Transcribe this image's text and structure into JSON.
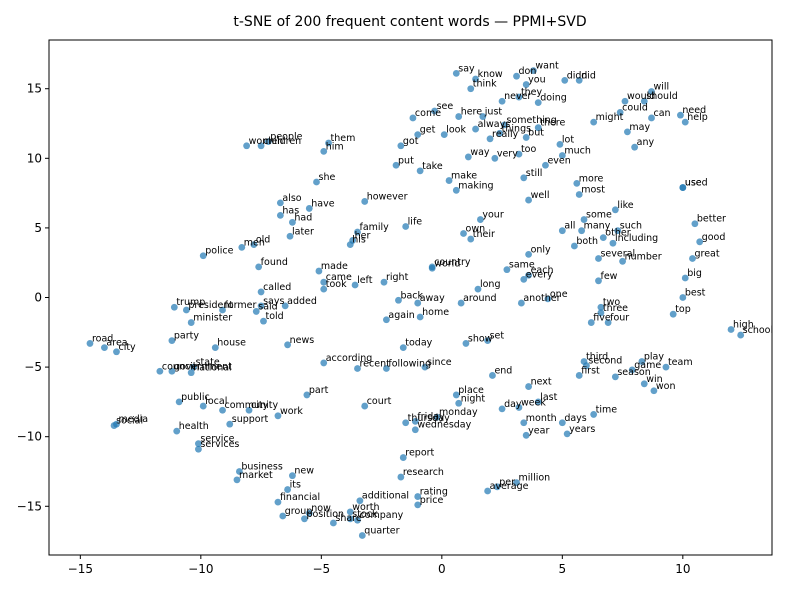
{
  "chart_data": {
    "type": "scatter",
    "title": "t-SNE of 200 frequent content words — PPMI+SVD",
    "xlabel": "",
    "ylabel": "",
    "xlim": [
      -16.3,
      13.7
    ],
    "ylim": [
      -18.5,
      18.5
    ],
    "xticks": [
      -15,
      -10,
      -5,
      0,
      5,
      10
    ],
    "yticks": [
      -15,
      -10,
      -5,
      0,
      5,
      10,
      15
    ],
    "grid": false,
    "point_color": "#1f77b4",
    "points": [
      {
        "label": "say",
        "x": 0.6,
        "y": 16.1
      },
      {
        "label": "know",
        "x": 1.4,
        "y": 15.7
      },
      {
        "label": "think",
        "x": 1.2,
        "y": 15.0
      },
      {
        "label": "don",
        "x": 3.1,
        "y": 15.9
      },
      {
        "label": "want",
        "x": 3.8,
        "y": 16.3
      },
      {
        "label": "you",
        "x": 3.5,
        "y": 15.3
      },
      {
        "label": "didn",
        "x": 5.1,
        "y": 15.6
      },
      {
        "label": "did",
        "x": 5.7,
        "y": 15.6
      },
      {
        "label": "they",
        "x": 3.2,
        "y": 14.4
      },
      {
        "label": "never",
        "x": 2.5,
        "y": 14.1
      },
      {
        "label": "doing",
        "x": 4.0,
        "y": 14.0
      },
      {
        "label": "will",
        "x": 8.7,
        "y": 14.8
      },
      {
        "label": "would",
        "x": 7.6,
        "y": 14.1
      },
      {
        "label": "should",
        "x": 8.4,
        "y": 14.1
      },
      {
        "label": "could",
        "x": 7.4,
        "y": 13.3
      },
      {
        "label": "need",
        "x": 9.9,
        "y": 13.1
      },
      {
        "label": "can",
        "x": 8.7,
        "y": 12.9
      },
      {
        "label": "help",
        "x": 10.1,
        "y": 12.6
      },
      {
        "label": "might",
        "x": 6.3,
        "y": 12.6
      },
      {
        "label": "may",
        "x": 7.7,
        "y": 11.9
      },
      {
        "label": "any",
        "x": 8.0,
        "y": 10.8
      },
      {
        "label": "see",
        "x": -0.3,
        "y": 13.4
      },
      {
        "label": "here",
        "x": 0.7,
        "y": 13.0
      },
      {
        "label": "just",
        "x": 1.7,
        "y": 13.0
      },
      {
        "label": "come",
        "x": -1.2,
        "y": 12.9
      },
      {
        "label": "something",
        "x": 2.6,
        "y": 12.4
      },
      {
        "label": "always",
        "x": 1.4,
        "y": 12.1
      },
      {
        "label": "there",
        "x": 4.0,
        "y": 12.2
      },
      {
        "label": "things",
        "x": 2.4,
        "y": 11.8
      },
      {
        "label": "really",
        "x": 2.0,
        "y": 11.4
      },
      {
        "label": "but",
        "x": 3.5,
        "y": 11.5
      },
      {
        "label": "get",
        "x": -1.0,
        "y": 11.7
      },
      {
        "label": "look",
        "x": 0.1,
        "y": 11.7
      },
      {
        "label": "got",
        "x": -1.7,
        "y": 10.9
      },
      {
        "label": "lot",
        "x": 4.9,
        "y": 11.0
      },
      {
        "label": "much",
        "x": 5.0,
        "y": 10.2
      },
      {
        "label": "way",
        "x": 1.1,
        "y": 10.1
      },
      {
        "label": "very",
        "x": 2.2,
        "y": 10.0
      },
      {
        "label": "too",
        "x": 3.2,
        "y": 10.3
      },
      {
        "label": "even",
        "x": 4.3,
        "y": 9.5
      },
      {
        "label": "put",
        "x": -1.9,
        "y": 9.5
      },
      {
        "label": "take",
        "x": -0.9,
        "y": 9.1
      },
      {
        "label": "still",
        "x": 3.4,
        "y": 8.6
      },
      {
        "label": "make",
        "x": 0.3,
        "y": 8.4
      },
      {
        "label": "making",
        "x": 0.6,
        "y": 7.7
      },
      {
        "label": "more",
        "x": 5.6,
        "y": 8.2
      },
      {
        "label": "most",
        "x": 5.7,
        "y": 7.4
      },
      {
        "label": "used",
        "x": 10.0,
        "y": 7.9
      },
      {
        "label": "use",
        "x": 10.0,
        "y": 7.9
      },
      {
        "label": "well",
        "x": 3.6,
        "y": 7.0
      },
      {
        "label": "like",
        "x": 7.2,
        "y": 6.3
      },
      {
        "label": "however",
        "x": -3.2,
        "y": 6.9
      },
      {
        "label": "also",
        "x": -6.7,
        "y": 6.8
      },
      {
        "label": "have",
        "x": -5.5,
        "y": 6.4
      },
      {
        "label": "has",
        "x": -6.7,
        "y": 5.9
      },
      {
        "label": "had",
        "x": -6.2,
        "y": 5.4
      },
      {
        "label": "your",
        "x": 1.6,
        "y": 5.6
      },
      {
        "label": "some",
        "x": 5.9,
        "y": 5.6
      },
      {
        "label": "better",
        "x": 10.5,
        "y": 5.3
      },
      {
        "label": "life",
        "x": -1.5,
        "y": 5.1
      },
      {
        "label": "family",
        "x": -3.5,
        "y": 4.7
      },
      {
        "label": "all",
        "x": 5.0,
        "y": 4.8
      },
      {
        "label": "many",
        "x": 5.8,
        "y": 4.8
      },
      {
        "label": "such",
        "x": 7.3,
        "y": 4.8
      },
      {
        "label": "other",
        "x": 6.7,
        "y": 4.3
      },
      {
        "label": "own",
        "x": 0.9,
        "y": 4.6
      },
      {
        "label": "their",
        "x": 1.2,
        "y": 4.2
      },
      {
        "label": "later",
        "x": -6.3,
        "y": 4.4
      },
      {
        "label": "her",
        "x": -3.7,
        "y": 4.1
      },
      {
        "label": "his",
        "x": -3.8,
        "y": 3.8
      },
      {
        "label": "including",
        "x": 7.1,
        "y": 3.9
      },
      {
        "label": "good",
        "x": 10.7,
        "y": 4.0
      },
      {
        "label": "both",
        "x": 5.5,
        "y": 3.7
      },
      {
        "label": "men",
        "x": -8.3,
        "y": 3.6
      },
      {
        "label": "old",
        "x": -7.8,
        "y": 3.8
      },
      {
        "label": "only",
        "x": 3.6,
        "y": 3.1
      },
      {
        "label": "police",
        "x": -9.9,
        "y": 3.0
      },
      {
        "label": "several",
        "x": 6.5,
        "y": 2.8
      },
      {
        "label": "number",
        "x": 7.5,
        "y": 2.6
      },
      {
        "label": "great",
        "x": 10.4,
        "y": 2.8
      },
      {
        "label": "found",
        "x": -7.6,
        "y": 2.2
      },
      {
        "label": "country",
        "x": -0.4,
        "y": 2.2
      },
      {
        "label": "world",
        "x": -0.4,
        "y": 2.1
      },
      {
        "label": "made",
        "x": -5.1,
        "y": 1.9
      },
      {
        "label": "same",
        "x": 2.7,
        "y": 2.0
      },
      {
        "label": "each",
        "x": 3.6,
        "y": 1.6
      },
      {
        "label": "every",
        "x": 3.4,
        "y": 1.3
      },
      {
        "label": "big",
        "x": 10.1,
        "y": 1.4
      },
      {
        "label": "came",
        "x": -4.9,
        "y": 1.1
      },
      {
        "label": "took",
        "x": -4.9,
        "y": 0.6
      },
      {
        "label": "left",
        "x": -3.6,
        "y": 0.9
      },
      {
        "label": "right",
        "x": -2.4,
        "y": 1.1
      },
      {
        "label": "long",
        "x": 1.5,
        "y": 0.6
      },
      {
        "label": "few",
        "x": 6.5,
        "y": 1.2
      },
      {
        "label": "called",
        "x": -7.5,
        "y": 0.4
      },
      {
        "label": "back",
        "x": -1.8,
        "y": -0.2
      },
      {
        "label": "away",
        "x": -1.0,
        "y": -0.4
      },
      {
        "label": "around",
        "x": 0.8,
        "y": -0.4
      },
      {
        "label": "one",
        "x": 4.4,
        "y": -0.1
      },
      {
        "label": "another",
        "x": 3.3,
        "y": -0.4
      },
      {
        "label": "best",
        "x": 10.0,
        "y": 0.0
      },
      {
        "label": "trump",
        "x": -11.1,
        "y": -0.7
      },
      {
        "label": "president",
        "x": -10.6,
        "y": -0.9
      },
      {
        "label": "former",
        "x": -9.1,
        "y": -0.9
      },
      {
        "label": "says",
        "x": -7.5,
        "y": -0.6
      },
      {
        "label": "said",
        "x": -7.7,
        "y": -1.0
      },
      {
        "label": "added",
        "x": -6.5,
        "y": -0.6
      },
      {
        "label": "two",
        "x": 6.6,
        "y": -0.7
      },
      {
        "label": "three",
        "x": 6.6,
        "y": -1.1
      },
      {
        "label": "home",
        "x": -0.9,
        "y": -1.4
      },
      {
        "label": "again",
        "x": -2.3,
        "y": -1.6
      },
      {
        "label": "top",
        "x": 9.6,
        "y": -1.2
      },
      {
        "label": "told",
        "x": -7.4,
        "y": -1.7
      },
      {
        "label": "minister",
        "x": -10.4,
        "y": -1.8
      },
      {
        "label": "five",
        "x": 6.2,
        "y": -1.8
      },
      {
        "label": "four",
        "x": 6.9,
        "y": -1.8
      },
      {
        "label": "high",
        "x": 12.0,
        "y": -2.3
      },
      {
        "label": "school",
        "x": 12.4,
        "y": -2.7
      },
      {
        "label": "party",
        "x": -11.2,
        "y": -3.1
      },
      {
        "label": "news",
        "x": -6.4,
        "y": -3.4
      },
      {
        "label": "show",
        "x": 1.0,
        "y": -3.3
      },
      {
        "label": "set",
        "x": 1.9,
        "y": -3.1
      },
      {
        "label": "road",
        "x": -14.6,
        "y": -3.3
      },
      {
        "label": "area",
        "x": -14.0,
        "y": -3.6
      },
      {
        "label": "city",
        "x": -13.5,
        "y": -3.9
      },
      {
        "label": "house",
        "x": -9.4,
        "y": -3.6
      },
      {
        "label": "today",
        "x": -1.6,
        "y": -3.6
      },
      {
        "label": "according",
        "x": -4.9,
        "y": -4.7
      },
      {
        "label": "recent",
        "x": -3.5,
        "y": -5.1
      },
      {
        "label": "following",
        "x": -2.3,
        "y": -5.1
      },
      {
        "label": "since",
        "x": -0.7,
        "y": -5.0
      },
      {
        "label": "third",
        "x": 5.9,
        "y": -4.6
      },
      {
        "label": "second",
        "x": 6.0,
        "y": -4.9
      },
      {
        "label": "play",
        "x": 8.3,
        "y": -4.6
      },
      {
        "label": "team",
        "x": 9.3,
        "y": -5.0
      },
      {
        "label": "game",
        "x": 7.9,
        "y": -5.2
      },
      {
        "label": "first",
        "x": 5.7,
        "y": -5.6
      },
      {
        "label": "state",
        "x": -10.3,
        "y": -5.0
      },
      {
        "label": "council",
        "x": -11.7,
        "y": -5.3
      },
      {
        "label": "government",
        "x": -11.2,
        "y": -5.3
      },
      {
        "label": "national",
        "x": -10.4,
        "y": -5.4
      },
      {
        "label": "end",
        "x": 2.1,
        "y": -5.6
      },
      {
        "label": "season",
        "x": 7.2,
        "y": -5.7
      },
      {
        "label": "win",
        "x": 8.4,
        "y": -6.2
      },
      {
        "label": "won",
        "x": 8.8,
        "y": -6.7
      },
      {
        "label": "next",
        "x": 3.6,
        "y": -6.4
      },
      {
        "label": "part",
        "x": -5.6,
        "y": -7.0
      },
      {
        "label": "place",
        "x": 0.6,
        "y": -7.0
      },
      {
        "label": "night",
        "x": 0.7,
        "y": -7.6
      },
      {
        "label": "last",
        "x": 4.0,
        "y": -7.5
      },
      {
        "label": "public",
        "x": -10.9,
        "y": -7.5
      },
      {
        "label": "local",
        "x": -9.9,
        "y": -7.8
      },
      {
        "label": "court",
        "x": -3.2,
        "y": -7.8
      },
      {
        "label": "day",
        "x": 2.5,
        "y": -8.0
      },
      {
        "label": "week",
        "x": 3.2,
        "y": -7.9
      },
      {
        "label": "community",
        "x": -9.1,
        "y": -8.1
      },
      {
        "label": "city2",
        "x": -8.0,
        "y": -8.1
      },
      {
        "label": "time",
        "x": 6.3,
        "y": -8.4
      },
      {
        "label": "work",
        "x": -6.8,
        "y": -8.5
      },
      {
        "label": "monday",
        "x": -0.2,
        "y": -8.6
      },
      {
        "label": "thursday",
        "x": -1.5,
        "y": -9.0
      },
      {
        "label": "friday",
        "x": -1.1,
        "y": -8.9
      },
      {
        "label": "support",
        "x": -8.8,
        "y": -9.1
      },
      {
        "label": "month",
        "x": 3.4,
        "y": -9.0
      },
      {
        "label": "days",
        "x": 5.0,
        "y": -9.0
      },
      {
        "label": "media",
        "x": -13.5,
        "y": -9.1
      },
      {
        "label": "social",
        "x": -13.6,
        "y": -9.2
      },
      {
        "label": "wednesday",
        "x": -1.1,
        "y": -9.5
      },
      {
        "label": "years",
        "x": 5.2,
        "y": -9.8
      },
      {
        "label": "health",
        "x": -11.0,
        "y": -9.6
      },
      {
        "label": "year",
        "x": 3.5,
        "y": -9.9
      },
      {
        "label": "service",
        "x": -10.1,
        "y": -10.5
      },
      {
        "label": "services",
        "x": -10.1,
        "y": -10.9
      },
      {
        "label": "report",
        "x": -1.6,
        "y": -11.5
      },
      {
        "label": "business",
        "x": -8.4,
        "y": -12.5
      },
      {
        "label": "new",
        "x": -6.2,
        "y": -12.8
      },
      {
        "label": "research",
        "x": -1.7,
        "y": -12.9
      },
      {
        "label": "market",
        "x": -8.5,
        "y": -13.1
      },
      {
        "label": "million",
        "x": 3.1,
        "y": -13.3
      },
      {
        "label": "its",
        "x": -6.4,
        "y": -13.8
      },
      {
        "label": "per",
        "x": 2.3,
        "y": -13.6
      },
      {
        "label": "average",
        "x": 1.9,
        "y": -13.9
      },
      {
        "label": "rating",
        "x": -1.0,
        "y": -14.3
      },
      {
        "label": "financial",
        "x": -6.8,
        "y": -14.7
      },
      {
        "label": "additional",
        "x": -3.4,
        "y": -14.6
      },
      {
        "label": "price",
        "x": -1.0,
        "y": -14.9
      },
      {
        "label": "worth",
        "x": -3.8,
        "y": -15.4
      },
      {
        "label": "now",
        "x": -5.5,
        "y": -15.5
      },
      {
        "label": "group",
        "x": -6.6,
        "y": -15.7
      },
      {
        "label": "position",
        "x": -5.7,
        "y": -15.9
      },
      {
        "label": "stock",
        "x": -3.8,
        "y": -15.9
      },
      {
        "label": "company",
        "x": -3.5,
        "y": -16.0
      },
      {
        "label": "share",
        "x": -4.5,
        "y": -16.2
      },
      {
        "label": "quarter",
        "x": -3.3,
        "y": -17.1
      },
      {
        "label": "women",
        "x": -8.1,
        "y": 10.9
      },
      {
        "label": "children",
        "x": -7.5,
        "y": 10.9
      },
      {
        "label": "people",
        "x": -7.2,
        "y": 11.2
      },
      {
        "label": "them",
        "x": -4.7,
        "y": 11.1
      },
      {
        "label": "him",
        "x": -4.9,
        "y": 10.5
      },
      {
        "label": "she",
        "x": -5.2,
        "y": 8.3
      }
    ]
  }
}
